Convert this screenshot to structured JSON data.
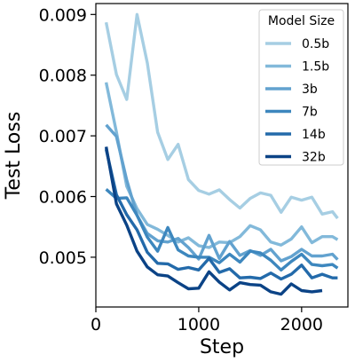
{
  "chart_data": {
    "type": "line",
    "title": "",
    "xlabel": "Step",
    "ylabel": "Test Loss",
    "xlim": [
      0,
      2450
    ],
    "ylim": [
      0.00418,
      0.00918
    ],
    "xticks": [
      0,
      1000,
      2000
    ],
    "xtick_labels": [
      "0",
      "1000",
      "2000"
    ],
    "yticks": [
      0.005,
      0.006,
      0.007,
      0.008,
      0.009
    ],
    "ytick_labels": [
      "0.005",
      "0.006",
      "0.007",
      "0.008",
      "0.009"
    ],
    "grid": false,
    "legend": {
      "title": "Model Size",
      "placement": "top-right"
    },
    "series": [
      {
        "name": "0.5b",
        "color": "#a6cee3",
        "x": [
          100,
          200,
          300,
          400,
          500,
          600,
          700,
          800,
          900,
          1000,
          1100,
          1200,
          1300,
          1400,
          1500,
          1600,
          1700,
          1800,
          1900,
          2000,
          2100,
          2200,
          2300,
          2350
        ],
        "y": [
          0.00887,
          0.00801,
          0.0076,
          0.009,
          0.0082,
          0.00706,
          0.00661,
          0.00686,
          0.00628,
          0.0061,
          0.00604,
          0.00611,
          0.00595,
          0.00581,
          0.00597,
          0.00606,
          0.00602,
          0.00574,
          0.00599,
          0.00594,
          0.00599,
          0.00571,
          0.00575,
          0.00564
        ]
      },
      {
        "name": "1.5b",
        "color": "#82b9da",
        "x": [
          100,
          200,
          300,
          400,
          500,
          600,
          700,
          800,
          900,
          1000,
          1100,
          1200,
          1300,
          1400,
          1500,
          1600,
          1700,
          1800,
          1900,
          2000,
          2100,
          2200,
          2300,
          2350
        ],
        "y": [
          0.00788,
          0.00706,
          0.00617,
          0.0058,
          0.00554,
          0.00546,
          0.00536,
          0.00525,
          0.00532,
          0.00519,
          0.00516,
          0.00525,
          0.00524,
          0.00534,
          0.00552,
          0.00545,
          0.00525,
          0.0052,
          0.0053,
          0.0055,
          0.00524,
          0.00534,
          0.00534,
          0.00529
        ]
      },
      {
        "name": "3b",
        "color": "#62a2cf",
        "x": [
          100,
          200,
          300,
          400,
          500,
          600,
          700,
          800,
          900,
          1000,
          1100,
          1200,
          1300,
          1400,
          1500,
          1600,
          1700,
          1800,
          1900,
          2000,
          2100,
          2200,
          2300,
          2350
        ],
        "y": [
          0.00718,
          0.00699,
          0.00627,
          0.00569,
          0.00539,
          0.00527,
          0.00525,
          0.00531,
          0.00516,
          0.00497,
          0.00536,
          0.00498,
          0.00526,
          0.00503,
          0.00511,
          0.00503,
          0.00513,
          0.00494,
          0.00501,
          0.00513,
          0.00502,
          0.00502,
          0.00505,
          0.00496
        ]
      },
      {
        "name": "7b",
        "color": "#3d87be",
        "x": [
          100,
          200,
          300,
          400,
          500,
          600,
          700,
          800,
          900,
          1000,
          1100,
          1200,
          1300,
          1400,
          1500,
          1600,
          1700,
          1800,
          1900,
          2000,
          2100,
          2200,
          2300,
          2350
        ],
        "y": [
          0.00612,
          0.00597,
          0.00598,
          0.00569,
          0.00533,
          0.0051,
          0.00549,
          0.00512,
          0.00502,
          0.005,
          0.005,
          0.00491,
          0.00505,
          0.00492,
          0.0051,
          0.00507,
          0.00495,
          0.00479,
          0.00493,
          0.00505,
          0.00488,
          0.00486,
          0.00488,
          0.00482
        ]
      },
      {
        "name": "14b",
        "color": "#236aaa",
        "x": [
          100,
          200,
          300,
          400,
          500,
          600,
          700,
          800,
          900,
          1000,
          1100,
          1200,
          1300,
          1400,
          1500,
          1600,
          1700,
          1800,
          1900,
          2000,
          2100,
          2200,
          2300,
          2350
        ],
        "y": [
          0.00678,
          0.00603,
          0.0057,
          0.00545,
          0.00508,
          0.0049,
          0.00489,
          0.0048,
          0.00483,
          0.00479,
          0.00498,
          0.00475,
          0.00481,
          0.00466,
          0.00467,
          0.00465,
          0.00474,
          0.00464,
          0.00472,
          0.00487,
          0.00466,
          0.00472,
          0.00466,
          0.00466
        ]
      },
      {
        "name": "32b",
        "color": "#0b4386",
        "x": [
          100,
          200,
          300,
          400,
          500,
          600,
          700,
          800,
          900,
          1000,
          1100,
          1200,
          1300,
          1400,
          1500,
          1600,
          1700,
          1800,
          1900,
          2000,
          2100,
          2200
        ],
        "y": [
          0.00682,
          0.00588,
          0.00553,
          0.0051,
          0.00484,
          0.00471,
          0.00469,
          0.00458,
          0.00448,
          0.00449,
          0.00476,
          0.00459,
          0.00446,
          0.00458,
          0.00455,
          0.00454,
          0.00443,
          0.00439,
          0.00456,
          0.00445,
          0.00443,
          0.00445
        ]
      }
    ]
  }
}
